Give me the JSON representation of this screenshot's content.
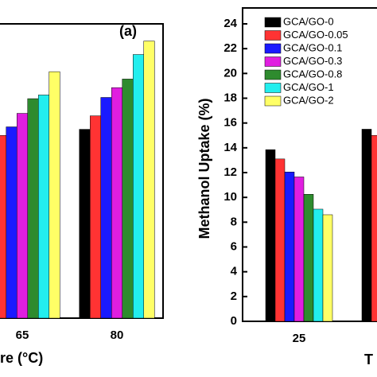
{
  "chart_data": [
    {
      "type": "bar",
      "annotation": "(a)",
      "x_label": "re (°C)",
      "categories": [
        "65",
        "80"
      ],
      "ylim": [
        0,
        24
      ],
      "series": [
        {
          "color": "#000000",
          "values": [
            null,
            15.4
          ]
        },
        {
          "color": "#ff3333",
          "values": [
            14.9,
            16.5
          ]
        },
        {
          "color": "#1a1aff",
          "values": [
            15.6,
            18.0
          ]
        },
        {
          "color": "#e01ee0",
          "values": [
            16.7,
            18.8
          ]
        },
        {
          "color": "#2e8b2e",
          "values": [
            17.9,
            19.5
          ]
        },
        {
          "color": "#22eeee",
          "values": [
            18.2,
            21.5
          ]
        },
        {
          "color": "#ffff66",
          "values": [
            20.1,
            22.6
          ]
        }
      ]
    },
    {
      "type": "bar",
      "y_label": "Methanol Uptake (%)",
      "x_label": "T",
      "categories": [
        "25",
        null
      ],
      "ylim": [
        0,
        24
      ],
      "yticks": [
        0,
        2,
        4,
        6,
        8,
        10,
        12,
        14,
        16,
        18,
        20,
        22,
        24
      ],
      "series": [
        {
          "name": "GCA/GO-0",
          "color": "#000000",
          "values": [
            13.85,
            15.5
          ]
        },
        {
          "name": "GCA/GO-0.05",
          "color": "#ff3333",
          "values": [
            13.1,
            15.0
          ]
        },
        {
          "name": "GCA/GO-0.1",
          "color": "#1a1aff",
          "values": [
            12.05,
            null
          ]
        },
        {
          "name": "GCA/GO-0.3",
          "color": "#e01ee0",
          "values": [
            11.65,
            null
          ]
        },
        {
          "name": "GCA/GO-0.8",
          "color": "#2e8b2e",
          "values": [
            10.25,
            null
          ]
        },
        {
          "name": "GCA/GO-1",
          "color": "#22eeee",
          "values": [
            9.05,
            null
          ]
        },
        {
          "name": "GCA/GO-2",
          "color": "#ffff66",
          "values": [
            8.6,
            null
          ]
        }
      ]
    }
  ]
}
